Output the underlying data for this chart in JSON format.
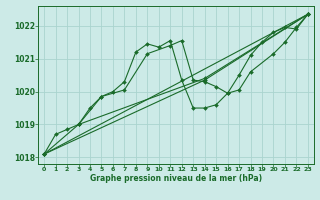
{
  "background_color": "#cceae7",
  "grid_color": "#aad4cf",
  "line_color": "#1a6b2a",
  "xlabel": "Graphe pression niveau de la mer (hPa)",
  "ylim": [
    1017.8,
    1022.6
  ],
  "xlim": [
    -0.5,
    23.5
  ],
  "yticks": [
    1018,
    1019,
    1020,
    1021,
    1022
  ],
  "xticks": [
    0,
    1,
    2,
    3,
    4,
    5,
    6,
    7,
    8,
    9,
    10,
    11,
    12,
    13,
    14,
    15,
    16,
    17,
    18,
    19,
    20,
    21,
    22,
    23
  ],
  "series": [
    {
      "x": [
        0,
        1,
        2,
        3,
        4,
        5,
        6,
        7,
        8,
        9,
        10,
        11,
        12,
        13,
        14,
        15,
        16,
        17,
        18,
        19,
        20,
        21,
        22,
        23
      ],
      "y": [
        1018.1,
        1018.7,
        1018.85,
        1019.0,
        1019.5,
        1019.85,
        1020.0,
        1020.3,
        1021.2,
        1021.45,
        1021.35,
        1021.55,
        1020.35,
        1019.5,
        1019.5,
        1019.6,
        1019.95,
        1020.5,
        1021.1,
        1021.5,
        1021.8,
        1021.95,
        1021.9,
        1022.35
      ]
    },
    {
      "x": [
        0,
        23
      ],
      "y": [
        1018.1,
        1022.35
      ]
    },
    {
      "x": [
        0,
        14,
        23
      ],
      "y": [
        1018.1,
        1020.35,
        1022.35
      ]
    },
    {
      "x": [
        3,
        14,
        23
      ],
      "y": [
        1019.0,
        1020.4,
        1022.35
      ]
    },
    {
      "x": [
        0,
        3,
        5,
        7,
        9,
        11,
        12,
        13,
        14,
        15,
        16,
        17,
        18,
        20,
        21,
        22,
        23
      ],
      "y": [
        1018.1,
        1019.0,
        1019.85,
        1020.05,
        1021.15,
        1021.4,
        1021.55,
        1020.35,
        1020.3,
        1020.15,
        1019.95,
        1020.05,
        1020.6,
        1021.15,
        1021.5,
        1021.95,
        1022.35
      ]
    }
  ]
}
